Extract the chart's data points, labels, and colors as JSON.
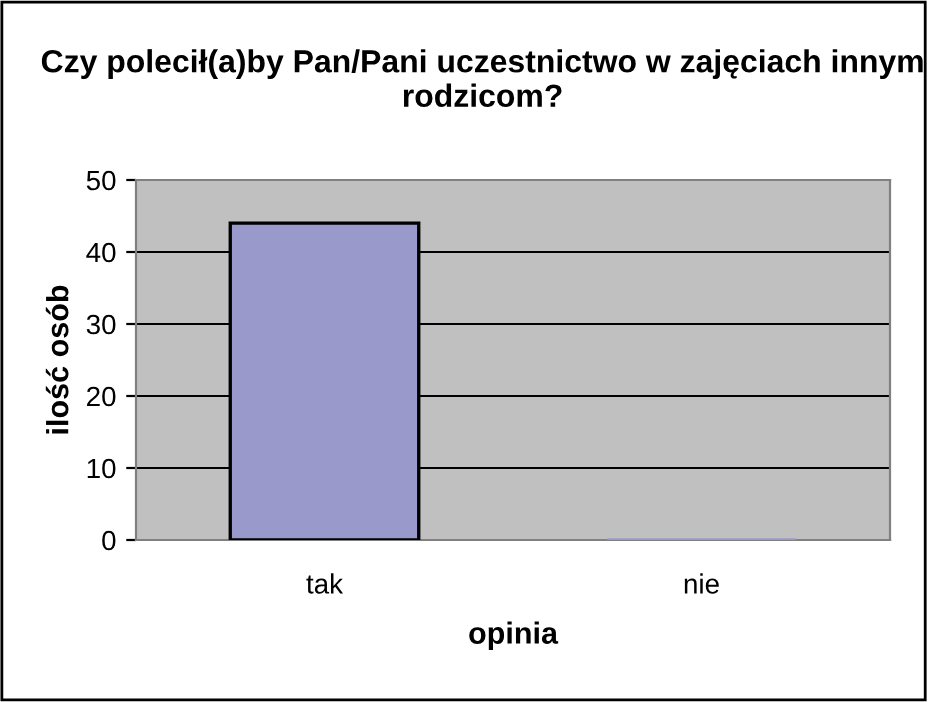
{
  "chart_data": {
    "type": "bar",
    "title": "Czy polecił(a)by Pan/Pani uczestnictwo w zajęciach innym rodzicom?",
    "xlabel": "opinia",
    "ylabel": "ilość osób",
    "categories": [
      "tak",
      "nie"
    ],
    "values": [
      44,
      0
    ],
    "color": "#9999cc",
    "ylim": [
      0,
      50
    ],
    "yticks": [
      0,
      10,
      20,
      30,
      40,
      50
    ],
    "grid": "y"
  }
}
